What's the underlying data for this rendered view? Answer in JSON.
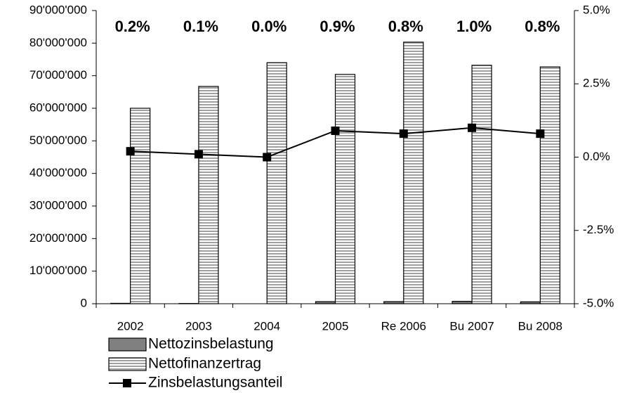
{
  "chart_data": {
    "type": "bar",
    "categories": [
      "2002",
      "2003",
      "2004",
      "2005",
      "Re 2006",
      "Bu 2007",
      "Bu 2008"
    ],
    "series": [
      {
        "name": "Nettozinsbelastung",
        "color": "#808080",
        "values": [
          120000,
          70000,
          0,
          630000,
          640000,
          730000,
          580000
        ]
      },
      {
        "name": "Nettofinanzertrag",
        "color": "#a0a0a0",
        "values": [
          60000000,
          66700000,
          74000000,
          70400000,
          80300000,
          73200000,
          72700000
        ]
      },
      {
        "name": "Zinsbelastungsanteil",
        "type": "line",
        "axis": "y2",
        "color": "#000000",
        "values": [
          0.2,
          0.1,
          0.0,
          0.9,
          0.8,
          1.0,
          0.8
        ],
        "value_labels": [
          "0.2%",
          "0.1%",
          "0.0%",
          "0.9%",
          "0.8%",
          "1.0%",
          "0.8%"
        ]
      }
    ],
    "ylim": [
      0,
      90000000
    ],
    "yticks": [
      0,
      {
        "value": 10000000,
        "label": "10'000'000"
      },
      {
        "value": 20000000,
        "label": "20'000'000"
      },
      {
        "value": 30000000,
        "label": "30'000'000"
      },
      {
        "value": 40000000,
        "label": "40'000'000"
      },
      {
        "value": 50000000,
        "label": "50'000'000"
      },
      {
        "value": 60000000,
        "label": "60'000'000"
      },
      {
        "value": 70000000,
        "label": "70'000'000"
      },
      {
        "value": 80000000,
        "label": "80'000'000"
      },
      {
        "value": 90000000,
        "label": "90'000'000"
      }
    ],
    "y2lim": [
      -5,
      5
    ],
    "y2ticks": [
      {
        "value": -5,
        "label": "-5.0%"
      },
      {
        "value": -2.5,
        "label": "-2.5%"
      },
      {
        "value": 0,
        "label": "0.0%"
      },
      {
        "value": 2.5,
        "label": "2.5%"
      },
      {
        "value": 5,
        "label": "5.0%"
      }
    ],
    "grid": false
  }
}
